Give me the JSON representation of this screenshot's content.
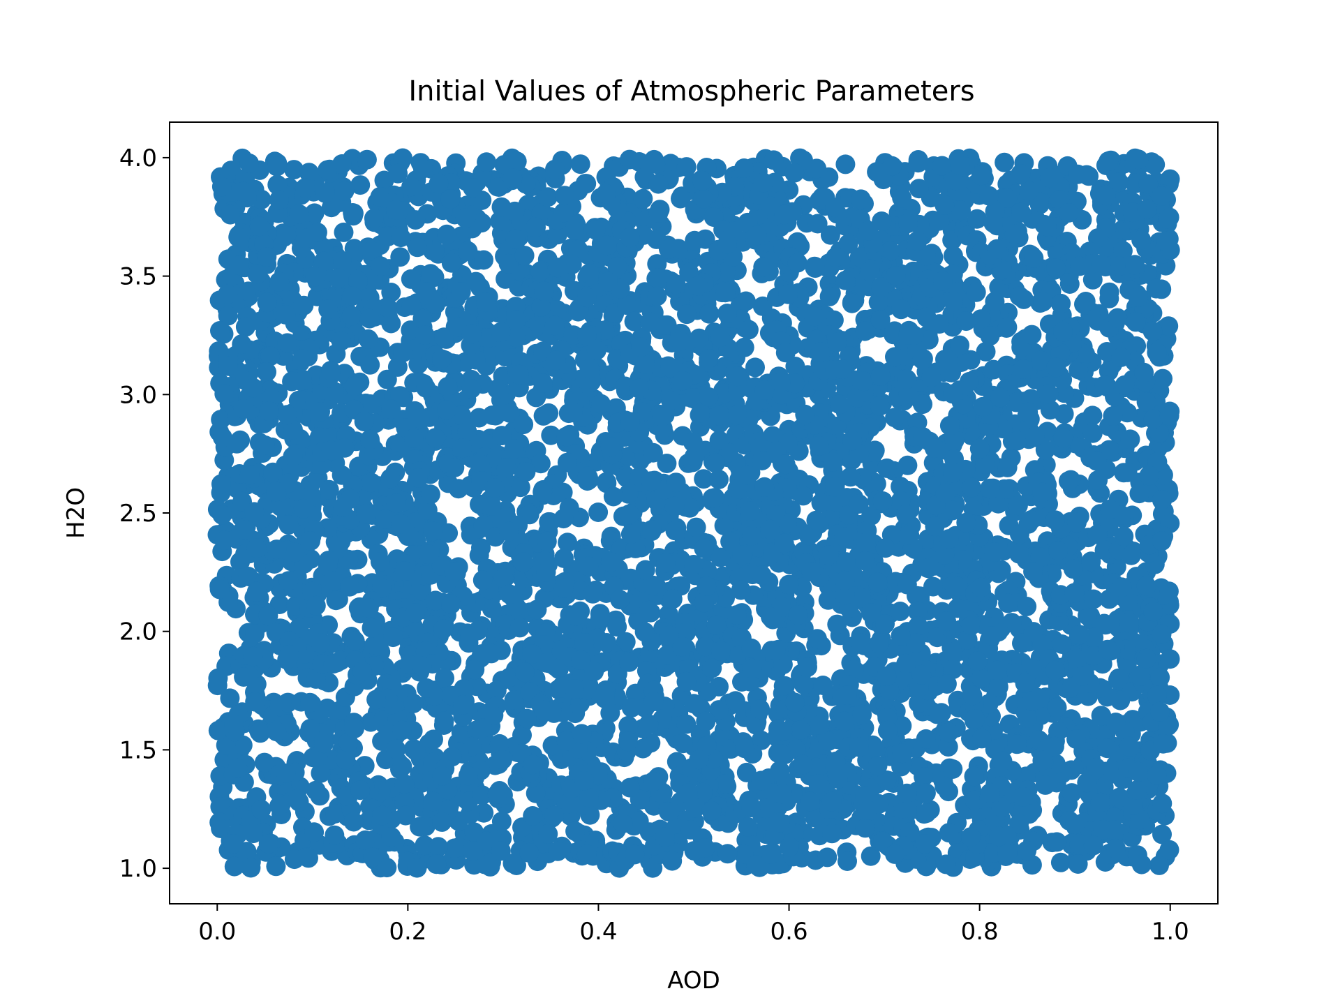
{
  "chart_data": {
    "type": "scatter",
    "title": "Initial Values of Atmospheric Parameters",
    "xlabel": "AOD",
    "ylabel": "H2O",
    "xlim": [
      -0.05,
      1.05
    ],
    "ylim": [
      0.85,
      4.15
    ],
    "xticks": [
      "0.0",
      "0.2",
      "0.4",
      "0.6",
      "0.8",
      "1.0"
    ],
    "yticks": [
      "1.0",
      "1.5",
      "2.0",
      "2.5",
      "3.0",
      "3.5",
      "4.0"
    ],
    "grid": false,
    "legend": "none",
    "color": "#1f77b4",
    "series": [
      {
        "x_range": [
          0.0,
          1.0
        ],
        "y_range": [
          1.0,
          4.0
        ],
        "distribution": "uniform",
        "count": 5000
      }
    ]
  }
}
